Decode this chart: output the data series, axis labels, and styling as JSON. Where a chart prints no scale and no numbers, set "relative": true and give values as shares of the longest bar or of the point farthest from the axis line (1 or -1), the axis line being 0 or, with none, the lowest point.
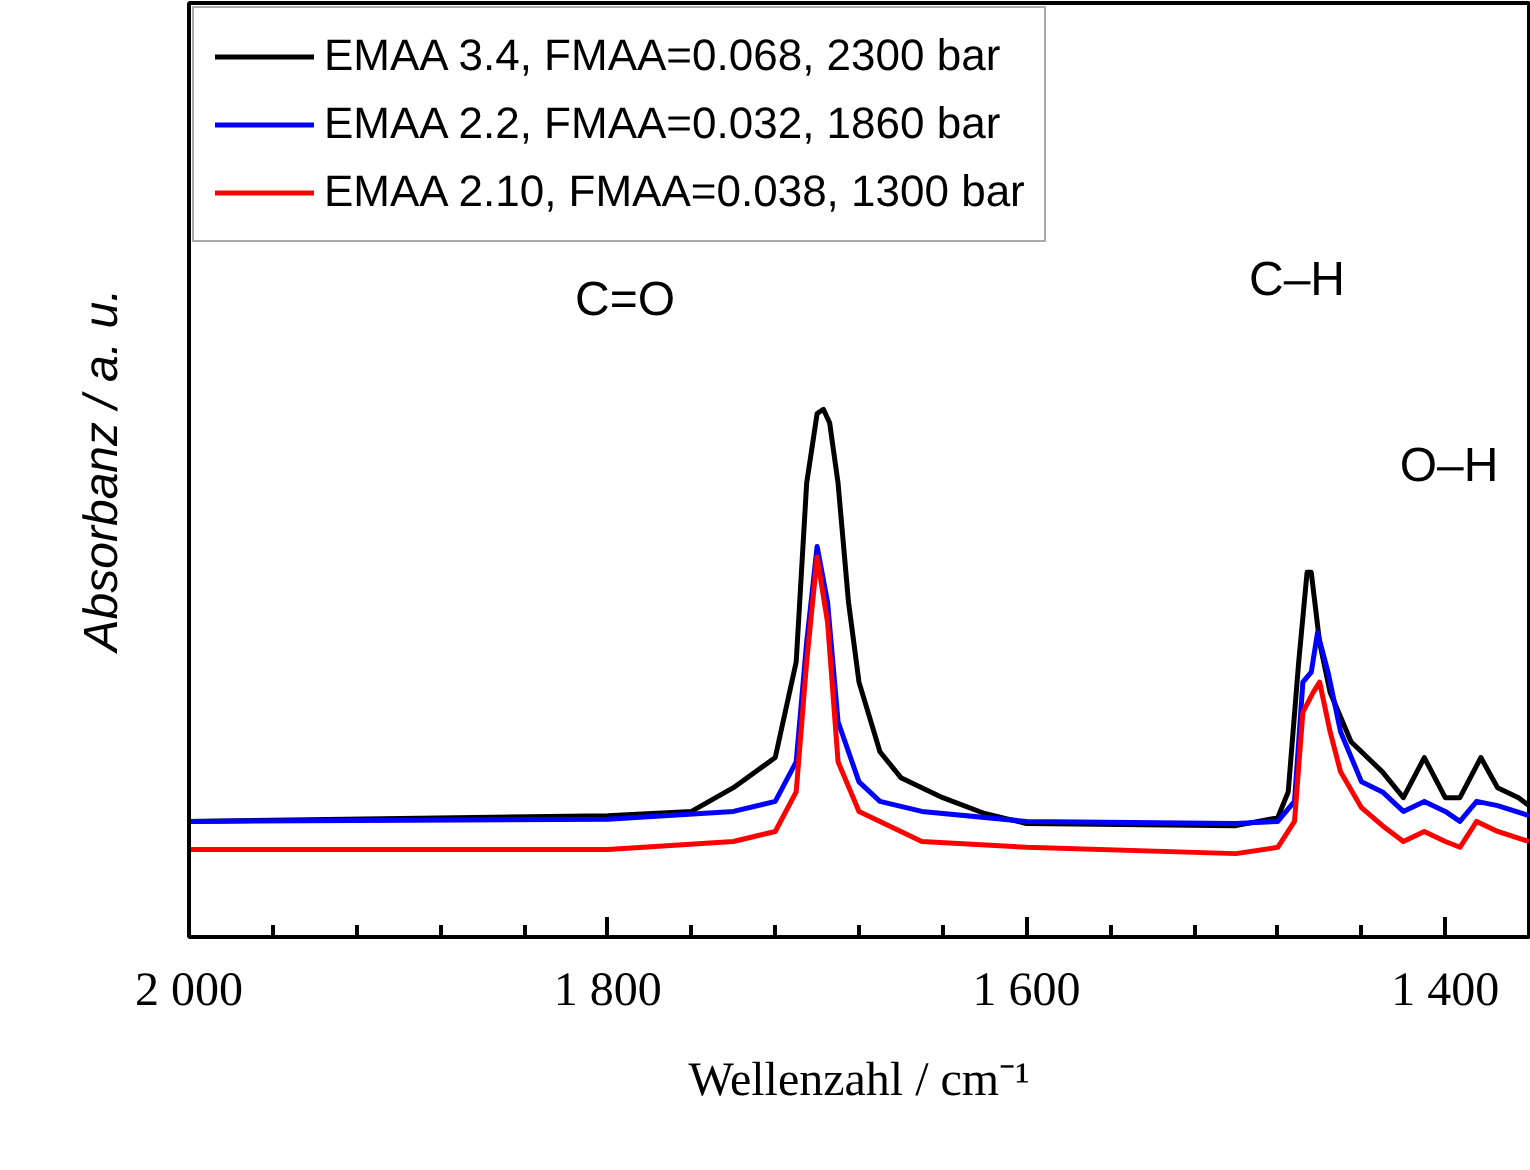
{
  "chart_data": {
    "type": "line",
    "relative": true,
    "xlabel": "Wellenzahl / cm⁻¹",
    "ylabel": "Absorbanz / a. u.",
    "xlim": [
      2000,
      1360
    ],
    "xticks": [
      {
        "value": 2000,
        "label": "2 000"
      },
      {
        "value": 1960,
        "label": null
      },
      {
        "value": 1920,
        "label": null
      },
      {
        "value": 1880,
        "label": null
      },
      {
        "value": 1840,
        "label": null
      },
      {
        "value": 1800,
        "label": "1 800"
      },
      {
        "value": 1760,
        "label": null
      },
      {
        "value": 1720,
        "label": null
      },
      {
        "value": 1680,
        "label": null
      },
      {
        "value": 1640,
        "label": null
      },
      {
        "value": 1600,
        "label": "1 600"
      },
      {
        "value": 1560,
        "label": null
      },
      {
        "value": 1520,
        "label": null
      },
      {
        "value": 1480,
        "label": null
      },
      {
        "value": 1440,
        "label": null
      },
      {
        "value": 1400,
        "label": "1 400"
      }
    ],
    "legend": "top left",
    "grid": false,
    "annotations": [
      "C=O",
      "C–H",
      "O–H"
    ],
    "series": [
      {
        "name": "EMAA 3.4, FMAA=0.068, 2300 bar",
        "color": "#000000",
        "x": [
          2000,
          1800,
          1760,
          1740,
          1720,
          1710,
          1705,
          1700,
          1697,
          1694,
          1690,
          1685,
          1680,
          1670,
          1660,
          1650,
          1640,
          1620,
          1600,
          1500,
          1480,
          1475,
          1470,
          1466,
          1464,
          1460,
          1455,
          1445,
          1430,
          1420,
          1410,
          1400,
          1393,
          1383,
          1375,
          1365,
          1360
        ],
        "values": [
          0.219,
          0.23,
          0.238,
          0.283,
          0.34,
          0.521,
          0.86,
          0.992,
          1.0,
          0.974,
          0.86,
          0.634,
          0.483,
          0.351,
          0.302,
          0.283,
          0.264,
          0.234,
          0.215,
          0.211,
          0.226,
          0.275,
          0.521,
          0.691,
          0.691,
          0.558,
          0.464,
          0.37,
          0.313,
          0.264,
          0.34,
          0.264,
          0.264,
          0.34,
          0.283,
          0.264,
          0.249
        ]
      },
      {
        "name": "EMAA 2.2, FMAA=0.032, 1860 bar",
        "color": "#0000ff",
        "x": [
          2000,
          1800,
          1740,
          1720,
          1710,
          1705,
          1700,
          1695,
          1690,
          1680,
          1670,
          1650,
          1600,
          1500,
          1480,
          1472,
          1468,
          1464,
          1461,
          1456,
          1450,
          1440,
          1430,
          1420,
          1410,
          1400,
          1393,
          1385,
          1375,
          1360
        ],
        "values": [
          0.219,
          0.223,
          0.238,
          0.257,
          0.332,
          0.558,
          0.74,
          0.634,
          0.408,
          0.294,
          0.257,
          0.238,
          0.219,
          0.215,
          0.219,
          0.257,
          0.483,
          0.502,
          0.577,
          0.502,
          0.389,
          0.294,
          0.275,
          0.238,
          0.257,
          0.238,
          0.219,
          0.257,
          0.249,
          0.23
        ]
      },
      {
        "name": "EMAA 2.10, FMAA=0.038, 1300 bar",
        "color": "#ff0000",
        "x": [
          2000,
          1800,
          1740,
          1720,
          1710,
          1705,
          1700,
          1695,
          1690,
          1680,
          1660,
          1650,
          1600,
          1500,
          1480,
          1472,
          1468,
          1463,
          1460,
          1455,
          1450,
          1440,
          1430,
          1420,
          1410,
          1400,
          1393,
          1385,
          1375,
          1360
        ],
        "values": [
          0.166,
          0.166,
          0.181,
          0.2,
          0.275,
          0.521,
          0.72,
          0.596,
          0.332,
          0.238,
          0.2,
          0.181,
          0.17,
          0.158,
          0.17,
          0.219,
          0.426,
          0.464,
          0.483,
          0.389,
          0.313,
          0.245,
          0.211,
          0.181,
          0.2,
          0.181,
          0.17,
          0.219,
          0.2,
          0.181
        ]
      }
    ]
  }
}
